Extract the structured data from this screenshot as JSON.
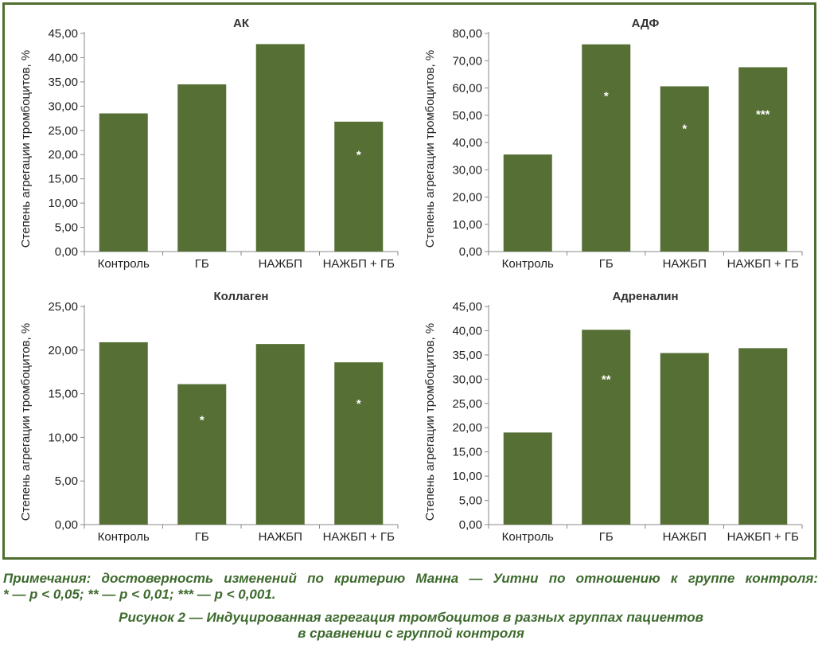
{
  "chart_data": [
    {
      "type": "bar",
      "title": "АК",
      "ylabel": "Степень агрегации тромбоцитов, %",
      "categories": [
        "Контроль",
        "ГБ",
        "НАЖБП",
        "НАЖБП + ГБ"
      ],
      "values": [
        28.5,
        34.5,
        42.8,
        26.8
      ],
      "annotations": [
        "",
        "",
        "",
        "*"
      ],
      "ylim": [
        0,
        45
      ],
      "yticks": [
        "0,00",
        "5,00",
        "10,00",
        "15,00",
        "20,00",
        "25,00",
        "30,00",
        "35,00",
        "40,00",
        "45,00"
      ],
      "grid": false,
      "color": "#556f35"
    },
    {
      "type": "bar",
      "title": "АДФ",
      "ylabel": "Степень агрегации тромбоцитов, %",
      "categories": [
        "Контроль",
        "ГБ",
        "НАЖБП",
        "НАЖБП + ГБ"
      ],
      "values": [
        35.6,
        76.0,
        60.6,
        67.6
      ],
      "annotations": [
        "",
        "*",
        "*",
        "***"
      ],
      "ylim": [
        0,
        80
      ],
      "yticks": [
        "0,00",
        "10,00",
        "20,00",
        "30,00",
        "40,00",
        "50,00",
        "60,00",
        "70,00",
        "80,00"
      ],
      "grid": false,
      "color": "#556f35"
    },
    {
      "type": "bar",
      "title": "Коллаген",
      "ylabel": "Степень агрегации тромбоцитов, %",
      "categories": [
        "Контроль",
        "ГБ",
        "НАЖБП",
        "НАЖБП + ГБ"
      ],
      "values": [
        20.9,
        16.1,
        20.7,
        18.6
      ],
      "annotations": [
        "",
        "*",
        "",
        "*"
      ],
      "ylim": [
        0,
        25
      ],
      "yticks": [
        "0,00",
        "5,00",
        "10,00",
        "15,00",
        "20,00",
        "25,00"
      ],
      "grid": false,
      "color": "#556f35"
    },
    {
      "type": "bar",
      "title": "Адреналин",
      "ylabel": "Степень агрегации тромбоцитов, %",
      "categories": [
        "Контроль",
        "ГБ",
        "НАЖБП",
        "НАЖБП + ГБ"
      ],
      "values": [
        19.0,
        40.2,
        35.4,
        36.4
      ],
      "annotations": [
        "",
        "**",
        "",
        ""
      ],
      "ylim": [
        0,
        45
      ],
      "yticks": [
        "0,00",
        "5,00",
        "10,00",
        "15,00",
        "20,00",
        "25,00",
        "30,00",
        "35,00",
        "40,00",
        "45,00"
      ],
      "grid": false,
      "color": "#556f35"
    }
  ],
  "notes": {
    "line1": "Примечания: достоверность изменений по критерию Манна — Уитни по отношению к группе контроля:",
    "line2": "* — p < 0,05; ** — p < 0,01; *** — p < 0,001."
  },
  "caption": {
    "line1": "Рисунок 2 — Индуцированная агрегация тромбоцитов в разных группах пациентов",
    "line2": "в сравнении с группой контроля"
  }
}
